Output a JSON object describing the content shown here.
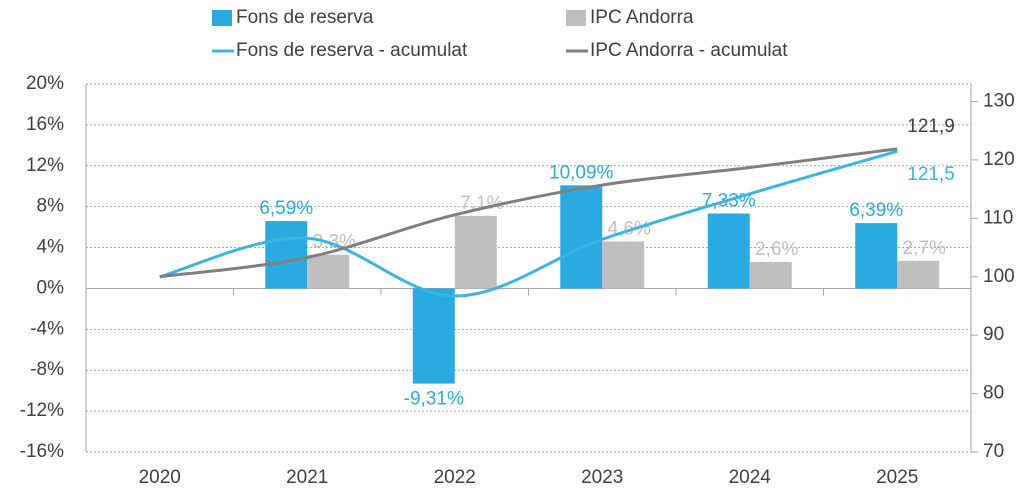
{
  "chart_data": {
    "type": "bar",
    "categories": [
      "2020",
      "2021",
      "2022",
      "2023",
      "2024",
      "2025"
    ],
    "series": [
      {
        "name": "Fons de reserva",
        "type": "bar",
        "color": "#29abe2",
        "values": [
          null,
          6.59,
          -9.31,
          10.09,
          7.33,
          6.39
        ],
        "value_labels": [
          null,
          "6,59%",
          "-9,31%",
          "10,09%",
          "7,33%",
          "6,39%"
        ]
      },
      {
        "name": "IPC Andorra",
        "type": "bar",
        "color": "#bfbfbf",
        "values": [
          null,
          3.3,
          7.1,
          4.6,
          2.6,
          2.7
        ],
        "value_labels": [
          null,
          "3,3%",
          "7,1%",
          "4,6%",
          "2,6%",
          "2,7%"
        ]
      },
      {
        "name": "Fons de reserva - acumulat",
        "type": "line",
        "axis": "y2",
        "color": "#3cb4e5",
        "values": [
          100,
          106.6,
          96.7,
          106.4,
          114.2,
          121.5
        ],
        "value_labels": [
          null,
          null,
          null,
          null,
          null,
          "121,5"
        ]
      },
      {
        "name": "IPC Andorra - acumulat",
        "type": "line",
        "axis": "y2",
        "color": "#7f7f7f",
        "values": [
          100,
          103.3,
          110.6,
          115.7,
          118.7,
          121.9
        ],
        "value_labels": [
          null,
          null,
          null,
          null,
          null,
          "121,9"
        ]
      }
    ],
    "ylim": [
      -16,
      20
    ],
    "yticks": [
      {
        "value": -16,
        "label": "-16%"
      },
      {
        "value": -12,
        "label": "-12%"
      },
      {
        "value": -8,
        "label": "-8%"
      },
      {
        "value": -4,
        "label": "-4%"
      },
      {
        "value": 0,
        "label": "0%"
      },
      {
        "value": 4,
        "label": "4%"
      },
      {
        "value": 8,
        "label": "8%"
      },
      {
        "value": 12,
        "label": "12%"
      },
      {
        "value": 16,
        "label": "16%"
      },
      {
        "value": 20,
        "label": "20%"
      }
    ],
    "y2lim": [
      70,
      133
    ],
    "y2ticks": [
      70,
      80,
      90,
      100,
      110,
      120,
      130
    ],
    "grid": true
  }
}
